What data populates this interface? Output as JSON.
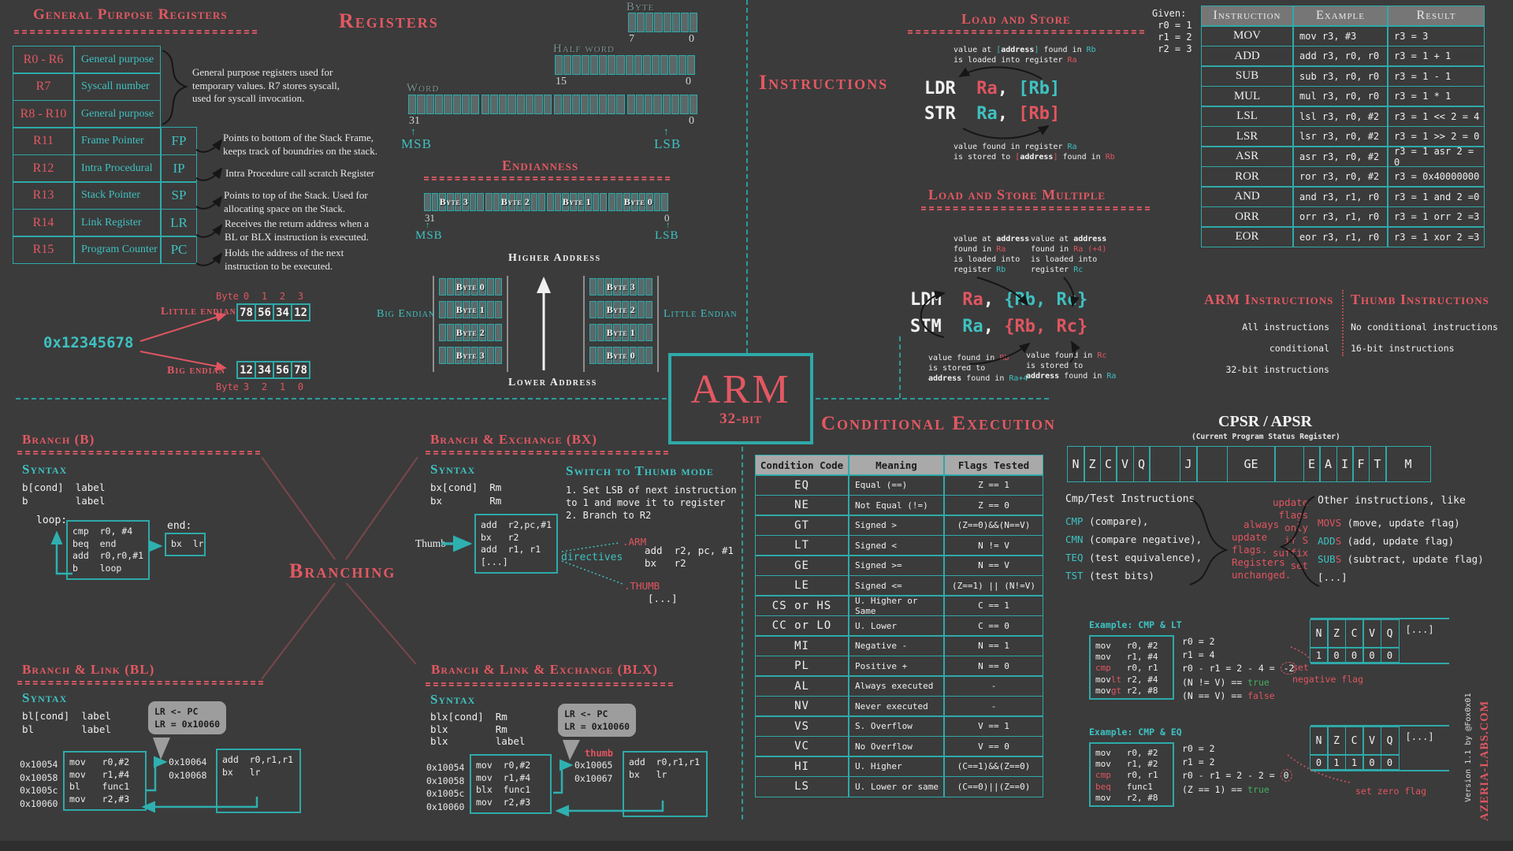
{
  "gpr": {
    "title": "General Purpose Registers",
    "rows": [
      {
        "reg": "R0 - R6",
        "desc": "General purpose"
      },
      {
        "reg": "R7",
        "desc": "Syscall number"
      },
      {
        "reg": "R8 - R10",
        "desc": "General purpose"
      },
      {
        "reg": "R11",
        "desc": "Frame Pointer",
        "abbr": "FP"
      },
      {
        "reg": "R12",
        "desc": "Intra Procedural",
        "abbr": "IP"
      },
      {
        "reg": "R13",
        "desc": "Stack Pointer",
        "abbr": "SP"
      },
      {
        "reg": "R14",
        "desc": "Link Register",
        "abbr": "LR"
      },
      {
        "reg": "R15",
        "desc": "Program Counter",
        "abbr": "PC"
      }
    ],
    "group_note": "General purpose registers used for\ntemporary values. R7 stores syscall,\nused for syscall invocation.",
    "notes": {
      "fp": "Points to bottom of the Stack Frame,\nkeeps track of boundries on the stack.",
      "ip": "Intra Procedure call scratch Register",
      "sp": "Points to top of the Stack. Used for\nallocating space on the Stack.",
      "lr": "Receives the return address when a\nBL or BLX instruction is executed.",
      "pc": "Holds the address of the next\ninstruction to be executed."
    }
  },
  "registers": {
    "title": "Registers",
    "byte_label": "Byte",
    "half_label": "Half word",
    "word_label": "Word",
    "byte_hi": "7",
    "byte_lo": "0",
    "half_hi": "15",
    "half_lo": "0",
    "word_hi": "31",
    "word_lo": "0",
    "msb": "MSB",
    "lsb": "LSB",
    "up": "↑"
  },
  "endianness": {
    "title": "Endianness",
    "word_bytes": [
      "Byte 3",
      "Byte 2",
      "Byte 1",
      "Byte 0"
    ],
    "hi_bit": "31",
    "lo_bit": "0",
    "msb": "MSB",
    "lsb": "LSB",
    "up": "↑",
    "higher": "Higher Address",
    "lower": "Lower Address",
    "big_label": "Big Endian",
    "little_label": "Little Endian",
    "big_column": [
      "Byte 0",
      "Byte 1",
      "Byte 2",
      "Byte 3"
    ],
    "little_column": [
      "Byte 3",
      "Byte 2",
      "Byte 1",
      "Byte 0"
    ]
  },
  "endian_example": {
    "value": "0x12345678",
    "little": {
      "label": "Little endian",
      "byte_word": "Byte",
      "indices": [
        "0",
        "1",
        "2",
        "3"
      ],
      "values": [
        "78",
        "56",
        "34",
        "12"
      ]
    },
    "big": {
      "label": "Big endian",
      "byte_word": "Byte",
      "indices": [
        "3",
        "2",
        "1",
        "0"
      ],
      "values": [
        "12",
        "34",
        "56",
        "78"
      ]
    }
  },
  "instructions": {
    "title": "Instructions"
  },
  "load_store": {
    "title": "Load and Store",
    "top_note": [
      [
        "value at ",
        {
          "t": "[",
          "c": "t"
        },
        {
          "t": "address",
          "c": "b"
        },
        {
          "t": "]",
          "c": "t"
        },
        " found in ",
        {
          "t": "Rb",
          "c": "t"
        }
      ],
      [
        "is loaded into register ",
        {
          "t": "Ra",
          "c": "r"
        }
      ]
    ],
    "ldr": [
      [
        {
          "t": "LDR  ",
          "c": ""
        },
        {
          "t": "Ra",
          "c": "r"
        },
        {
          "t": ", ",
          "c": ""
        },
        {
          "t": "[Rb]",
          "c": "t"
        }
      ]
    ],
    "str": [
      [
        {
          "t": "STR  ",
          "c": ""
        },
        {
          "t": "Ra",
          "c": "t"
        },
        {
          "t": ", ",
          "c": ""
        },
        {
          "t": "[Rb]",
          "c": "r"
        }
      ]
    ],
    "bottom_note": [
      [
        "value found in register ",
        {
          "t": "Ra",
          "c": "t"
        }
      ],
      [
        "is stored to ",
        {
          "t": "[",
          "c": "r"
        },
        {
          "t": "address",
          "c": "b"
        },
        {
          "t": "]",
          "c": "r"
        },
        " found in ",
        {
          "t": "Rb",
          "c": "r"
        }
      ]
    ]
  },
  "given": "Given:\n r0 = 1\n r1 = 2\n r2 = 3",
  "instr_table": {
    "headers": [
      "Instruction",
      "Example",
      "Result"
    ],
    "rows": [
      [
        "MOV",
        "mov r3, #3",
        "r3 = 3"
      ],
      [
        "ADD",
        "add r3, r0, r0",
        "r3 = 1 + 1"
      ],
      [
        "SUB",
        "sub r3, r0, r0",
        "r3 = 1 - 1"
      ],
      [
        "MUL",
        "mul r3, r0, r0",
        "r3 = 1 * 1"
      ],
      [
        "LSL",
        "lsl r3, r0, #2",
        "r3 = 1 << 2 = 4"
      ],
      [
        "LSR",
        "lsr r3, r0, #2",
        "r3 = 1 >> 2 = 0"
      ],
      [
        "ASR",
        "asr r3, r0, #2",
        "r3 = 1 asr 2 = 0"
      ],
      [
        "ROR",
        "ror r3, r0, #2",
        "r3 = 0x40000000"
      ],
      [
        "AND",
        "and r3, r1, r0",
        "r3 = 1 and 2 =0"
      ],
      [
        "ORR",
        "orr r3, r1, r0",
        "r3 = 1 orr 2 =3"
      ],
      [
        "EOR",
        "eor r3, r1, r0",
        "r3 = 1 xor 2 =3"
      ]
    ]
  },
  "ldm_stm": {
    "title": "Load and Store Multiple",
    "note_tl": [
      [
        "value at ",
        {
          "t": "address",
          "c": "b"
        }
      ],
      [
        "found in ",
        {
          "t": "Ra",
          "c": "r"
        }
      ],
      [
        "is loaded into"
      ],
      [
        "register ",
        {
          "t": "Rb",
          "c": "t"
        }
      ]
    ],
    "note_tr": [
      [
        "value at ",
        {
          "t": "address",
          "c": "b"
        }
      ],
      [
        "found in ",
        {
          "t": "Ra",
          "c": "r"
        },
        {
          "t": " (+4)",
          "c": "r"
        }
      ],
      [
        "is loaded into"
      ],
      [
        "register ",
        {
          "t": "Rc",
          "c": "t"
        }
      ]
    ],
    "ldm": [
      [
        {
          "t": "LDM  ",
          "c": ""
        },
        {
          "t": "Ra",
          "c": "r"
        },
        {
          "t": ", ",
          "c": ""
        },
        {
          "t": "{Rb, Rc}",
          "c": "t"
        }
      ]
    ],
    "stm": [
      [
        {
          "t": "STM  ",
          "c": ""
        },
        {
          "t": "Ra",
          "c": "t"
        },
        {
          "t": ", ",
          "c": ""
        },
        {
          "t": "{Rb, Rc}",
          "c": "r"
        }
      ]
    ],
    "note_bl": [
      [
        "value found in ",
        {
          "t": "Rb",
          "c": "r"
        }
      ],
      [
        "is stored to"
      ],
      [
        {
          "t": "address",
          "c": "b"
        },
        " found in ",
        {
          "t": "Ra+4",
          "c": "t"
        }
      ]
    ],
    "note_br": [
      [
        "value found in ",
        {
          "t": "Rc",
          "c": "r"
        }
      ],
      [
        "is stored to"
      ],
      [
        {
          "t": "address",
          "c": "b"
        },
        " found in ",
        {
          "t": "Ra",
          "c": "t"
        }
      ]
    ]
  },
  "arm_thumb": {
    "arm_title": "ARM Instructions",
    "arm_lines": "All instructions conditional\n32-bit instructions",
    "thumb_title": "Thumb Instructions",
    "thumb_lines": "No conditional instructions\n16-bit instructions"
  },
  "arm_logo": {
    "name": "ARM",
    "bits": "32-bit"
  },
  "cond_exec": {
    "title": "Conditional Execution",
    "headers": [
      "Condition Code",
      "Meaning",
      "Flags Tested"
    ],
    "rows": [
      [
        "EQ",
        "Equal (==)",
        "Z == 1"
      ],
      [
        "NE",
        "Not Equal (!=)",
        "Z == 0"
      ],
      [
        "GT",
        "Signed >",
        "(Z==0)&&(N==V)"
      ],
      [
        "LT",
        "Signed <",
        "N != V"
      ],
      [
        "GE",
        "Signed >=",
        "N == V"
      ],
      [
        "LE",
        "Signed <=",
        "(Z==1) || (N!=V)"
      ],
      [
        "CS or HS",
        "U. Higher or Same",
        "C == 1"
      ],
      [
        "CC or LO",
        "U. Lower",
        "C == 0"
      ],
      [
        "MI",
        "Negative -",
        "N == 1"
      ],
      [
        "PL",
        "Positive +",
        "N == 0"
      ],
      [
        "AL",
        "Always executed",
        "-"
      ],
      [
        "NV",
        "Never executed",
        "-"
      ],
      [
        "VS",
        "S. Overflow",
        "V == 1"
      ],
      [
        "VC",
        "No Overflow",
        "V == 0"
      ],
      [
        "HI",
        "U. Higher",
        "(C==1)&&(Z==0)"
      ],
      [
        "LS",
        "U. Lower or same",
        "(C==0)||(Z==0)"
      ]
    ]
  },
  "cpsr": {
    "title": "CPSR / APSR",
    "subtitle": "(Current Program Status Register)",
    "cells": [
      "N",
      "Z",
      "C",
      "V",
      "Q",
      "",
      "J",
      "",
      "GE",
      "",
      "E",
      "A",
      "I",
      "F",
      "T",
      "M"
    ]
  },
  "cmp_test": {
    "heading": "Cmp/Test Instructions",
    "items": [
      [
        {
          "t": "CMP",
          "c": "t"
        },
        " (compare),"
      ],
      [
        {
          "t": "CMN",
          "c": "t"
        },
        " (compare negative),"
      ],
      [
        {
          "t": "TEQ",
          "c": "t"
        },
        " (test equivalence),"
      ],
      [
        {
          "t": "TST",
          "c": "t"
        },
        " (test bits)"
      ]
    ],
    "note_always": "  always\nupdate\nflags.\nRegisters\nunchanged.",
    "note_suffix": "update\n flags\n  only\n  if S\nsuffix\n   set",
    "other_heading": "Other instructions, like",
    "other_items": [
      [
        {
          "t": "MOVS",
          "c": "r"
        },
        " (move, update flag)"
      ],
      [
        {
          "t": "ADD",
          "c": "t"
        },
        {
          "t": "S",
          "c": "r"
        },
        " (add, update flag)"
      ],
      [
        {
          "t": "SUB",
          "c": "t"
        },
        {
          "t": "S",
          "c": "r"
        },
        " (subtract, update flag)"
      ],
      [
        "[...]"
      ]
    ]
  },
  "examples": [
    {
      "title": "Example: CMP & LT",
      "code": [
        [
          "mov   r0, #2"
        ],
        [
          "mov   r1, #4"
        ],
        [
          {
            "t": "cmp",
            "c": "r"
          },
          "   r0, r1"
        ],
        [
          {
            "t": "mov"
          },
          {
            "t": "lt",
            "c": "r"
          },
          " r2, #4"
        ],
        [
          {
            "t": "mov"
          },
          {
            "t": "gt",
            "c": "r"
          },
          " r2, #8"
        ]
      ],
      "expl": [
        [
          "r0 = 2"
        ],
        [
          "r1 = 4"
        ],
        [
          "r0 - r1 = 2 - 4 = ",
          {
            "t": "-2",
            "c": "circ"
          }
        ],
        [
          "(N != V) == ",
          {
            "t": "true",
            "c": "g"
          }
        ],
        [
          "(N == V) == ",
          {
            "t": "false",
            "c": "r"
          }
        ]
      ],
      "note": "set\nnegative flag",
      "flags": {
        "labels": [
          "N",
          "Z",
          "C",
          "V",
          "Q"
        ],
        "more": "[...]",
        "values": [
          "1",
          "0",
          "0",
          "0",
          "0"
        ]
      }
    },
    {
      "title": "Example: CMP & EQ",
      "code": [
        [
          "mov   r0, #2"
        ],
        [
          "mov   r1, #2"
        ],
        [
          {
            "t": "cmp",
            "c": "r"
          },
          "   r0, r1"
        ],
        [
          {
            "t": "beq",
            "c": "r"
          },
          "   func1"
        ],
        [
          "mov   r2, #8"
        ]
      ],
      "expl": [
        [
          "r0 = 2"
        ],
        [
          "r1 = 2"
        ],
        [
          "r0 - r1 = 2 - 2 = ",
          {
            "t": "0",
            "c": "circ"
          }
        ],
        [
          "(Z == 1) == ",
          {
            "t": "true",
            "c": "g"
          }
        ]
      ],
      "note": "set zero flag",
      "flags": {
        "labels": [
          "N",
          "Z",
          "C",
          "V",
          "Q"
        ],
        "more": "[...]",
        "values": [
          "0",
          "1",
          "1",
          "0",
          "0"
        ]
      }
    }
  ],
  "branching": {
    "center_title": "Branching",
    "b": {
      "title": "Branch (B)",
      "syntax_label": "Syntax",
      "syntax": [
        "b[cond]  label",
        "b        label"
      ],
      "loop_label": "loop:",
      "end_label": "end:",
      "loop_code": [
        "cmp  r0, #4",
        "beq  end",
        "add  r0,r0,#1",
        "b    loop"
      ],
      "end_code": [
        "bx  lr"
      ]
    },
    "bx": {
      "title": "Branch & Exchange (BX)",
      "syntax_label": "Syntax",
      "syntax": [
        "bx[cond]  Rm",
        "bx        Rm"
      ],
      "thumb_label": "Thumb",
      "code": [
        "add  r2,pc,#1",
        "bx   r2",
        "add  r1, r1",
        "[...]"
      ],
      "switch_title": "Switch to Thumb mode",
      "switch_lines": "1. Set LSB of next instruction\nto 1 and move it to register\n2. Branch to R2",
      "directives": "directives",
      "arm_directive": ".ARM",
      "arm_code": [
        "add  r2, pc, #1",
        "bx   r2"
      ],
      "thumb_directive": ".THUMB",
      "thumb_code": [
        "[...]"
      ]
    },
    "bl": {
      "title": "Branch & Link  (BL)",
      "syntax_label": "Syntax",
      "syntax": [
        "bl[cond]  label",
        "bl        label"
      ],
      "bubble": "LR <- PC\nLR = 0x10060",
      "addrs": "0x10054\n0x10058\n0x1005c\n0x10060",
      "code": [
        "mov   r0,#2",
        "mov   r1,#4",
        "bl    func1",
        "mov   r2,#3"
      ],
      "addrs2": "0x10064\n0x10068",
      "code2": [
        "add  r0,r1,r1",
        "bx   lr"
      ]
    },
    "blx": {
      "title": "Branch & Link & Exchange (BLX)",
      "syntax_label": "Syntax",
      "syntax": [
        "blx[cond]  Rm",
        "blx        Rm",
        "blx        label"
      ],
      "bubble": "LR <- PC\nLR = 0x10060",
      "thumb_note": "thumb",
      "addrs": "0x10054\n0x10058\n0x1005c\n0x10060",
      "code": [
        "mov  r0,#2",
        "mov  r1,#4",
        "blx  func1",
        "mov  r2,#3"
      ],
      "addrs2": "0x10065\n0x10067",
      "code2": [
        "add  r0,r1,r1",
        "bx   lr"
      ]
    }
  },
  "credits": {
    "version": "Version 1.1 by @Fox0x01",
    "site": "AZERIA-LABS.COM"
  }
}
